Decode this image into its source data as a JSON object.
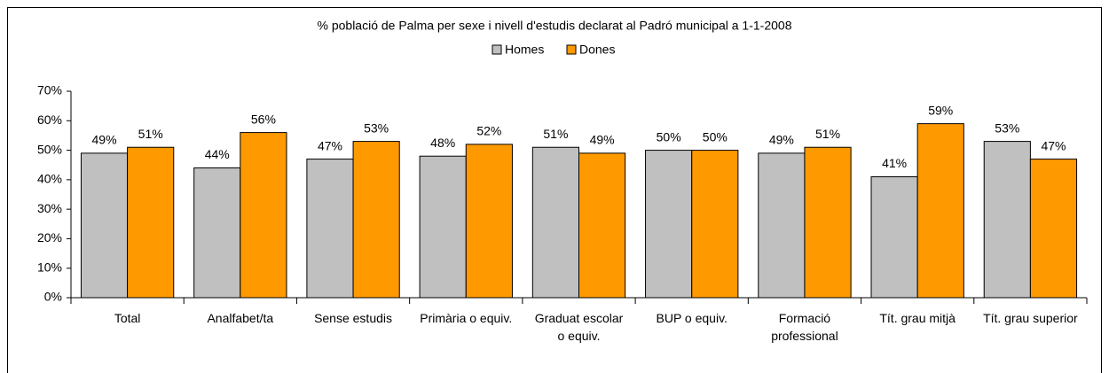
{
  "chart_data": {
    "type": "bar",
    "title": "% població de Palma per sexe i nivell d'estudis declarat al Padró municipal a 1-1-2008",
    "categories": [
      "Total",
      "Analfabet/ta",
      "Sense estudis",
      "Primària o equiv.",
      "Graduat escolar o equiv.",
      "BUP o equiv.",
      "Formació professional",
      "Tít. grau mitjà",
      "Tít. grau superior"
    ],
    "series": [
      {
        "name": "Homes",
        "color": "#c0c0c0",
        "values": [
          49,
          44,
          47,
          48,
          51,
          50,
          49,
          41,
          53
        ],
        "value_labels": [
          "49%",
          "44%",
          "47%",
          "48%",
          "51%",
          "50%",
          "49%",
          "41%",
          "53%"
        ]
      },
      {
        "name": "Dones",
        "color": "#ff9900",
        "values": [
          51,
          56,
          53,
          52,
          49,
          50,
          51,
          59,
          47
        ],
        "value_labels": [
          "51%",
          "56%",
          "53%",
          "52%",
          "49%",
          "50%",
          "51%",
          "59%",
          "47%"
        ]
      }
    ],
    "ylim": [
      0,
      70
    ],
    "yticks": [
      {
        "value": 0,
        "label": "0%"
      },
      {
        "value": 10,
        "label": "10%"
      },
      {
        "value": 20,
        "label": "20%"
      },
      {
        "value": 30,
        "label": "30%"
      },
      {
        "value": 40,
        "label": "40%"
      },
      {
        "value": 50,
        "label": "50%"
      },
      {
        "value": 60,
        "label": "60%"
      },
      {
        "value": 70,
        "label": "70%"
      }
    ],
    "legend": "top"
  }
}
